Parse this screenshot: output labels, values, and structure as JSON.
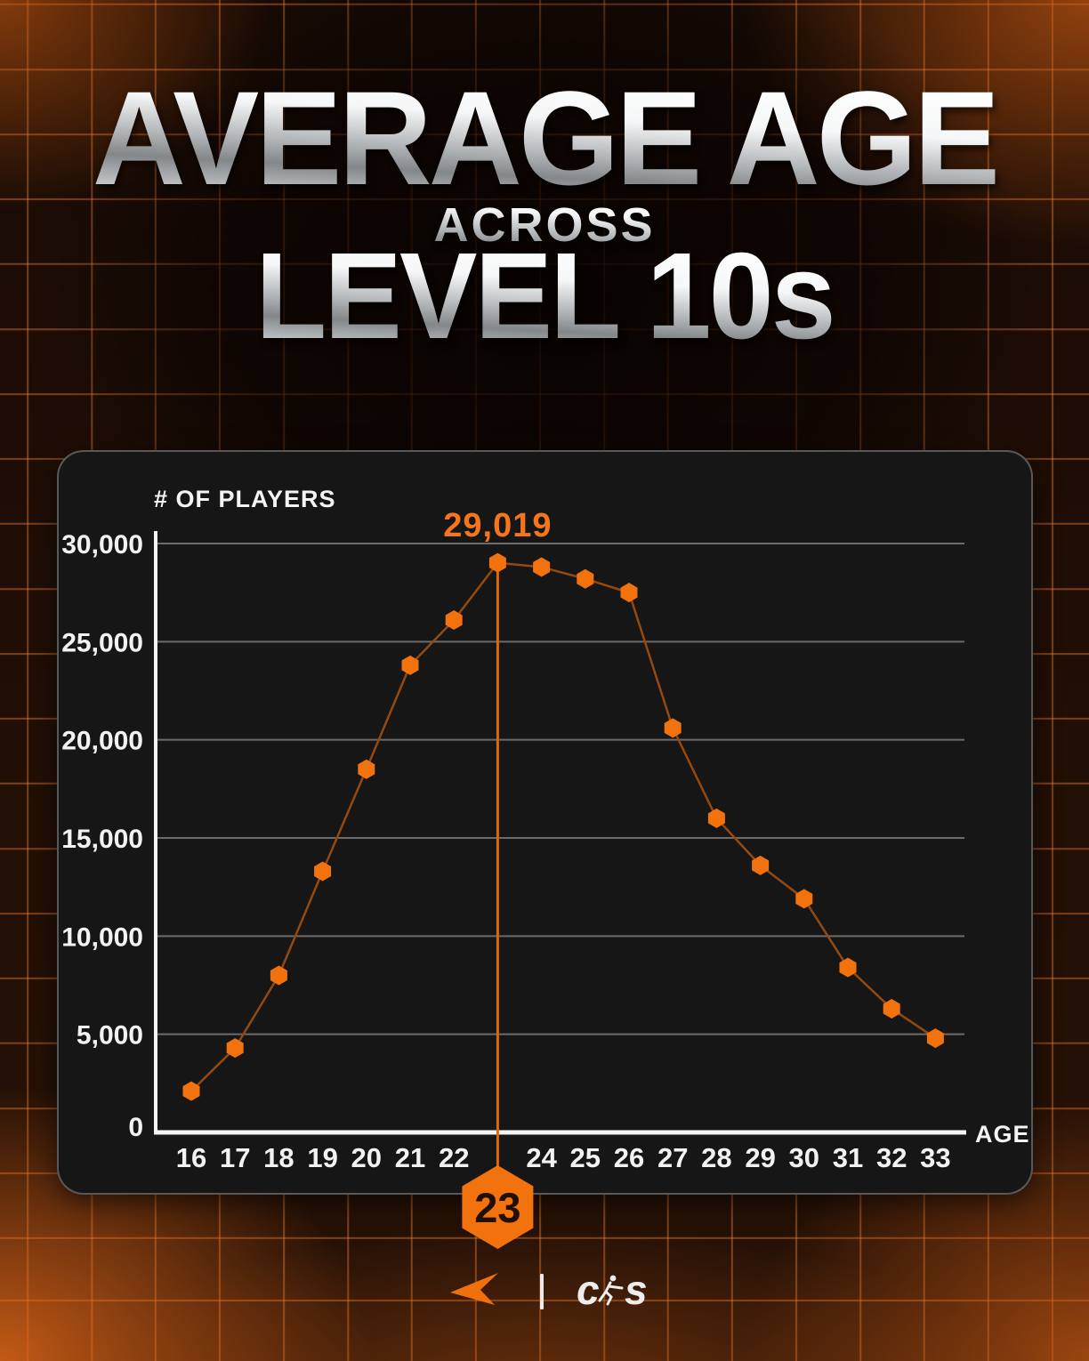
{
  "title": {
    "line1": "AVERAGE AGE",
    "line2": "ACROSS",
    "line3": "LEVEL 10s"
  },
  "chart_data": {
    "type": "line",
    "ylabel": "# OF PLAYERS",
    "xlabel": "AGE",
    "x": [
      16,
      17,
      18,
      19,
      20,
      21,
      22,
      23,
      24,
      25,
      26,
      27,
      28,
      29,
      30,
      31,
      32,
      33
    ],
    "values": [
      2100,
      4300,
      8000,
      13300,
      18500,
      23800,
      26100,
      29019,
      28800,
      28200,
      27500,
      20600,
      16000,
      13600,
      11900,
      8400,
      6300,
      4800
    ],
    "ylim": [
      0,
      30000
    ],
    "grid": true,
    "marker": "hexagon",
    "y_ticks": [
      {
        "label": "30,000",
        "v": 30000
      },
      {
        "label": "25,000",
        "v": 25000
      },
      {
        "label": "20,000",
        "v": 20000
      },
      {
        "label": "15,000",
        "v": 15000
      },
      {
        "label": "10,000",
        "v": 10000
      },
      {
        "label": "5,000",
        "v": 5000
      },
      {
        "label": "0",
        "v": 0
      }
    ],
    "highlight": {
      "age": 23,
      "value": 29019,
      "value_label": "29,019",
      "badge_label": "23"
    },
    "colors": {
      "accent": "#f2720e",
      "annotation": "#f5751c",
      "series_line": "#94490f",
      "drop_line": "#e0660d",
      "grid": "#6b6b6b",
      "axis": "#f4f4f4",
      "tick_text": "#f2f2f2",
      "badge_text": "#200f03",
      "panel_bg": "#161616"
    }
  },
  "footer": {
    "faceit_icon": "faceit-arrow-logo",
    "cs_icon": "cs-wordmark-with-player-silhouette",
    "cs_c": "c",
    "cs_s": "s"
  }
}
